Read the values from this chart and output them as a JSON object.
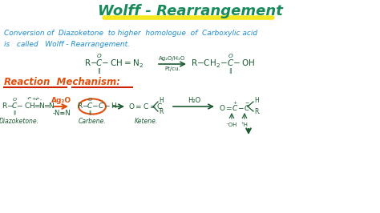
{
  "bg_color": "#ffffff",
  "title": "Wolff - Rearrangement",
  "title_color": "#1a8a5a",
  "title_underline_color": "#f5e820",
  "line1": "Conversion of  Diazoketone  to higher  homologue  of  Carboxylic acid",
  "line2": "is   called   Wolff - Rearrangement.",
  "text_color": "#1a8ad0",
  "reaction_label": "Reaction  Mechanism:",
  "reaction_label_color": "#e05010",
  "reaction_underline_color": "#cc2200",
  "mechanism_color": "#1a5a30",
  "orange_color": "#e05010",
  "dpi": 100,
  "fig_w": 4.74,
  "fig_h": 2.66
}
